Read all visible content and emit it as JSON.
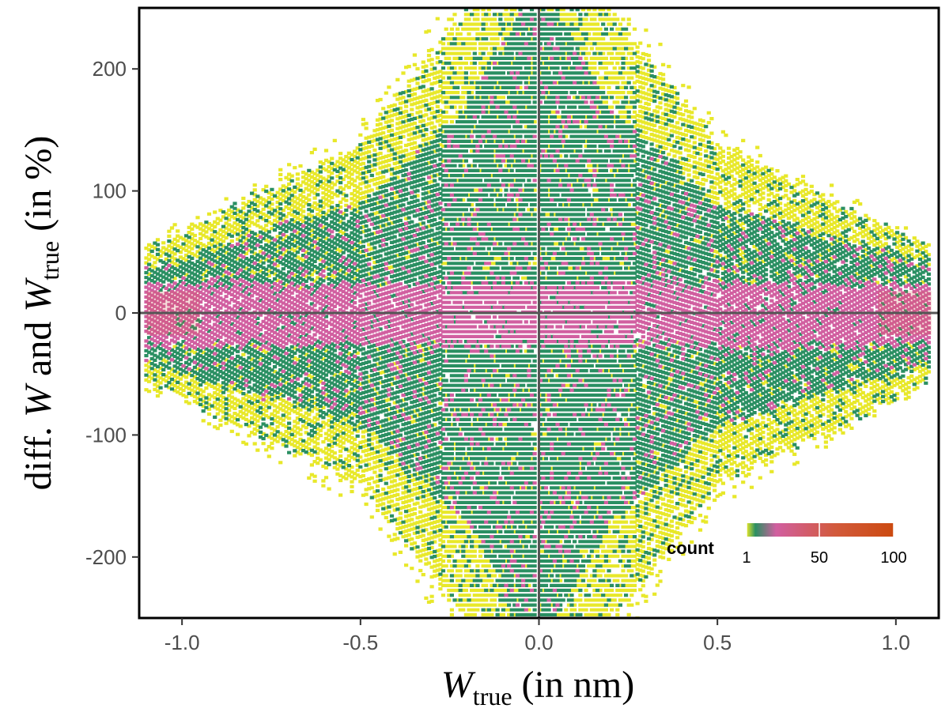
{
  "chart_data": {
    "type": "hexbin",
    "title": "",
    "xlabel": {
      "main": "W",
      "sub": "true",
      "suffix": " (in nm)"
    },
    "ylabel": {
      "prefix": "diff. ",
      "w1": "W",
      "mid": " and ",
      "w2": "W",
      "sub": "true",
      "suffix": " (in %)"
    },
    "xlim": [
      -1.12,
      1.12
    ],
    "ylim": [
      -250,
      250
    ],
    "x_ticks": [
      -1.0,
      -0.5,
      0.0,
      0.5,
      1.0
    ],
    "x_tick_labels": [
      "-1.0",
      "-0.5",
      "0.0",
      "0.5",
      "1.0"
    ],
    "y_ticks": [
      -200,
      -100,
      0,
      100,
      200
    ],
    "y_tick_labels": [
      "-200",
      "-100",
      "0",
      "100",
      "200"
    ],
    "reference_lines": {
      "x": 0,
      "y": 0
    },
    "x_data_range": [
      -1.1,
      1.1
    ],
    "grid": false,
    "legend": {
      "title": "count",
      "position": "bottom-right",
      "range": [
        1,
        100
      ],
      "ticks": [
        1,
        50,
        100
      ],
      "tick_labels": [
        "1",
        "50",
        "100"
      ],
      "colors": [
        "#e8e82a",
        "#2a8f62",
        "#d15fa0",
        "#d25a3c",
        "#cc4a10"
      ]
    },
    "density_profile": {
      "description": "relative error spread (in %) versus W_true; spread widens toward W_true = 0",
      "spread_at_x": [
        {
          "x": 1.1,
          "core_pct": 25,
          "mid_pct": 40,
          "outer_pct": 55
        },
        {
          "x": 0.5,
          "core_pct": 25,
          "mid_pct": 90,
          "outer_pct": 140
        },
        {
          "x": 0.2,
          "core_pct": 25,
          "mid_pct": 170,
          "outer_pct": 250
        },
        {
          "x": 0.05,
          "core_pct": 25,
          "mid_pct": 250,
          "outer_pct": 250
        }
      ]
    }
  }
}
